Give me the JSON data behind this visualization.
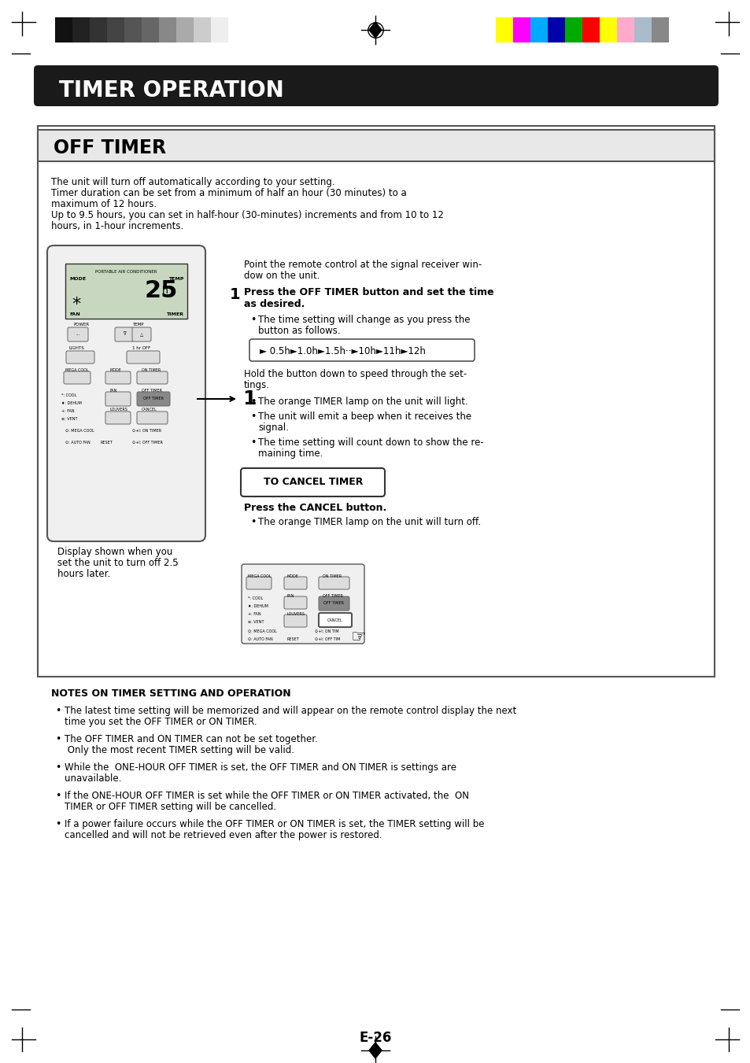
{
  "page_bg": "#ffffff",
  "header_bg": "#1a1a1a",
  "header_text": "TIMER OPERATION",
  "header_text_color": "#ffffff",
  "section_bg": "#e8e8e8",
  "section_border": "#333333",
  "section_title": "OFF TIMER",
  "section_title_color": "#000000",
  "main_box_bg": "#ffffff",
  "main_box_border": "#555555",
  "page_number": "E-26",
  "color_bars_left": [
    "#111111",
    "#222222",
    "#333333",
    "#444444",
    "#555555",
    "#666666",
    "#888888",
    "#aaaaaa",
    "#cccccc",
    "#eeeeee"
  ],
  "color_bars_right": [
    "#ffff00",
    "#ff00ff",
    "#00aaff",
    "#0000aa",
    "#00aa00",
    "#ff0000",
    "#ffff00",
    "#ffaacc",
    "#aabbcc",
    "#888888"
  ],
  "intro_text": "The unit will turn off automatically according to your setting.\nTimer duration can be set from a minimum of half an hour (30 minutes) to a\nmaximum of 12 hours.\nUp to 9.5 hours, you can set in half-hour (30-minutes) increments and from 10 to 12\nhours, in 1-hour increments.",
  "point_text": "Point the remote control at the signal receiver win-\ndow on the unit.",
  "step1_title": "Press the OFF TIMER button and set the time\nas desired.",
  "step1_sub1": "The time setting will change as you press the\nbutton as follows.",
  "timer_sequence": "► 0.5h►1.0h►1.5h··►10h►11h►12h",
  "step1_sub2": "Hold the button down to speed through the set-\ntings.",
  "bullet1": "The orange TIMER lamp on the unit will light.",
  "bullet2": "The unit will emit a beep when it receives the\nsignal.",
  "bullet3": "The time setting will count down to show the re-\nmaining time.",
  "cancel_box_text": "TO CANCEL TIMER",
  "cancel_title": "Press the CANCEL button.",
  "cancel_sub": "The orange TIMER lamp on the unit will turn off.",
  "display_caption": "Display shown when you\nset the unit to turn off 2.5\nhours later.",
  "notes_title": "NOTES ON TIMER SETTING AND OPERATION",
  "note1": "The latest time setting will be memorized and will appear on the remote control display the next\ntime you set the OFF TIMER or ON TIMER.",
  "note2": "The OFF TIMER and ON TIMER can not be set together.\n Only the most recent TIMER setting will be valid.",
  "note3": "While the  ONE-HOUR OFF TIMER is set, the OFF TIMER and ON TIMER is settings are\nunavailable.",
  "note4": "If the ONE-HOUR OFF TIMER is set while the OFF TIMER or ON TIMER activated, the  ON\nTIMER or OFF TIMER setting will be cancelled.",
  "note5": "If a power failure occurs while the OFF TIMER or ON TIMER is set, the TIMER setting will be\ncancelled and will not be retrieved even after the power is restored."
}
